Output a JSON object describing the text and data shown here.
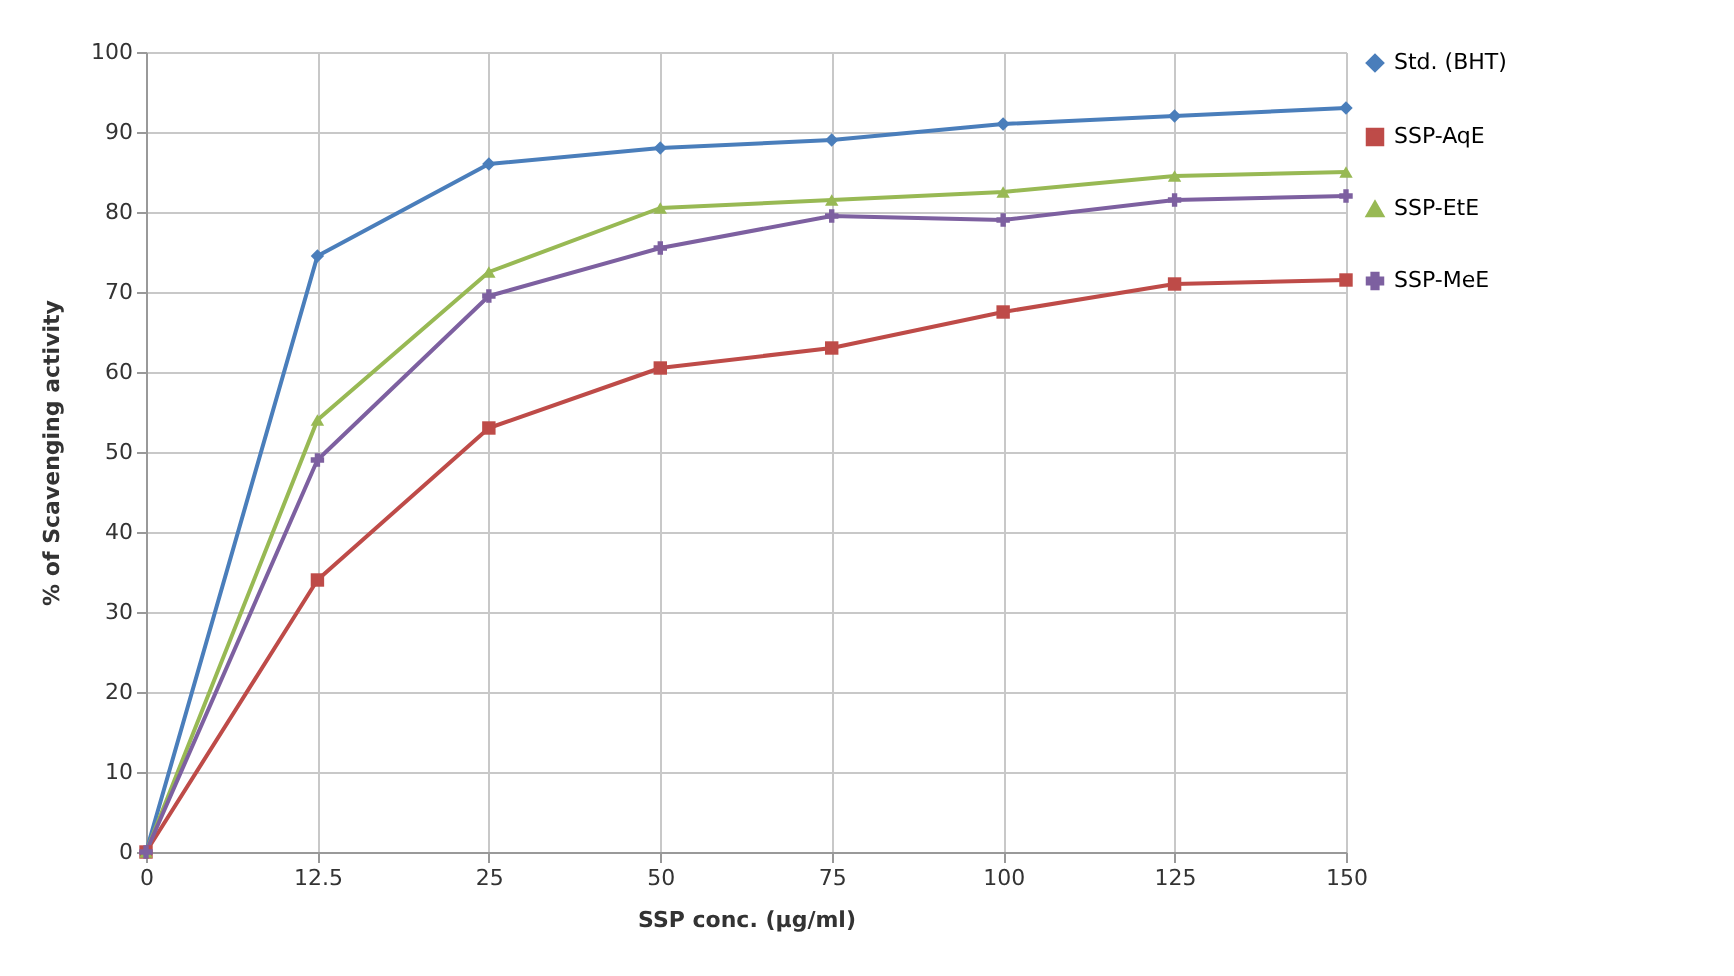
{
  "chart_data": {
    "type": "line",
    "xlabel": "SSP conc. (µg/ml)",
    "ylabel": "% of Scavenging activity",
    "categories": [
      "0",
      "12.5",
      "25",
      "50",
      "75",
      "100",
      "125",
      "150"
    ],
    "series": [
      {
        "name": "Std. (BHT)",
        "color": "#4a7ebb",
        "marker": "diamond",
        "values": [
          0,
          74.5,
          86,
          88,
          89,
          91,
          92,
          93
        ]
      },
      {
        "name": "SSP-AqE",
        "color": "#be4b48",
        "marker": "square",
        "values": [
          0,
          34,
          53,
          60.5,
          63,
          67.5,
          71,
          71.5
        ]
      },
      {
        "name": "SSP-EtE",
        "color": "#98b954",
        "marker": "triangle",
        "values": [
          0,
          54,
          72.5,
          80.5,
          81.5,
          82.5,
          84.5,
          85
        ]
      },
      {
        "name": "SSP-MeE",
        "color": "#7d60a0",
        "marker": "cross",
        "values": [
          0,
          49,
          69.5,
          75.5,
          79.5,
          79,
          81.5,
          82
        ]
      }
    ],
    "ylim": [
      0,
      100
    ],
    "yticks": [
      0,
      10,
      20,
      30,
      40,
      50,
      60,
      70,
      80,
      90,
      100
    ],
    "grid": true,
    "legend": "right",
    "line_style": "solid"
  }
}
